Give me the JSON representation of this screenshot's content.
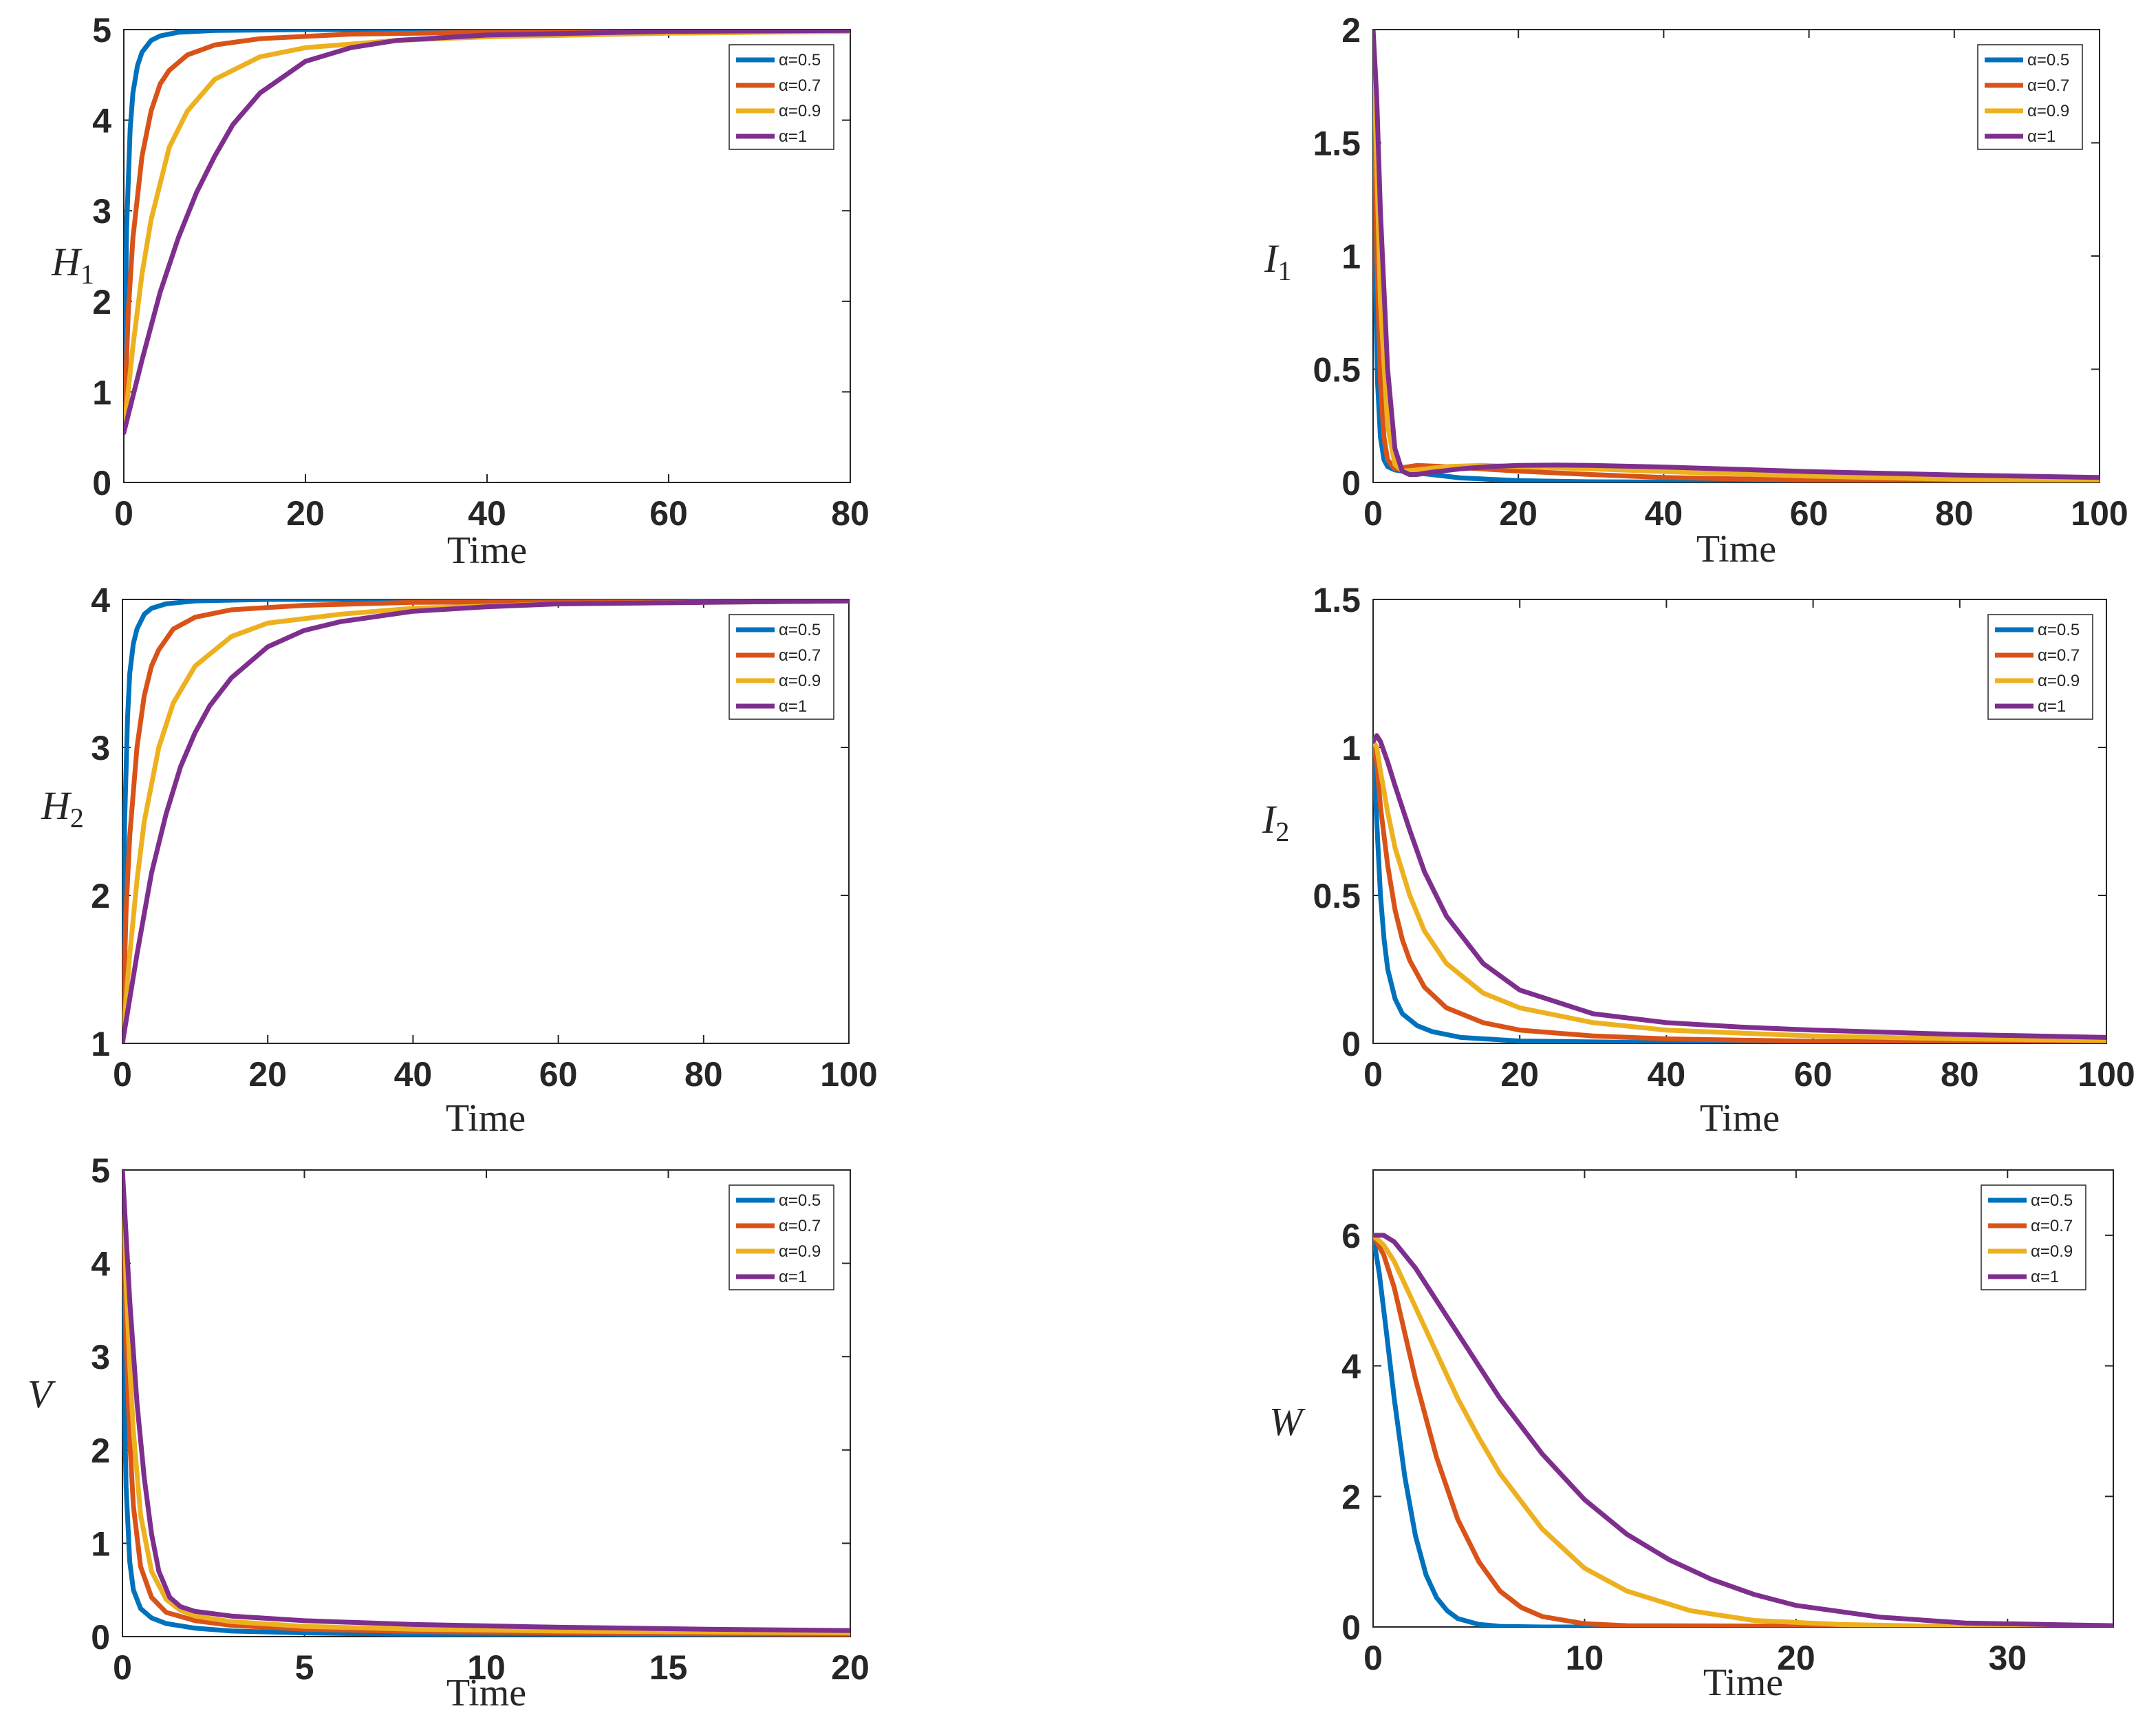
{
  "figure": {
    "series_colors": [
      "#0072BD",
      "#D95319",
      "#EDB120",
      "#7E2F8E"
    ],
    "legend_labels": [
      "α=0.5",
      "α=0.7",
      "α=0.9",
      "α=1"
    ]
  },
  "chart_data": [
    {
      "type": "line",
      "id": "H1",
      "ylabel": "H",
      "ylabel_sub": "1",
      "xlabel": "Time",
      "xlim": [
        0,
        80
      ],
      "ylim": [
        0,
        5
      ],
      "xticks": [
        0,
        20,
        40,
        60,
        80
      ],
      "yticks": [
        0,
        1,
        2,
        3,
        4,
        5
      ],
      "xtick_labels": [
        "0",
        "20",
        "40",
        "60",
        "80"
      ],
      "ytick_labels": [
        "0",
        "1",
        "2",
        "3",
        "4",
        "5"
      ],
      "legend_position": "top-right",
      "series": [
        {
          "name": "α=0.5",
          "x": [
            0,
            0.3,
            0.7,
            1,
            1.5,
            2,
            3,
            4,
            6,
            10,
            20,
            80
          ],
          "values": [
            0.55,
            2.8,
            3.9,
            4.3,
            4.6,
            4.75,
            4.88,
            4.93,
            4.97,
            4.99,
            5.0,
            5.0
          ]
        },
        {
          "name": "α=0.7",
          "x": [
            0,
            0.5,
            1,
            2,
            3,
            4,
            5,
            7,
            10,
            15,
            25,
            40,
            80
          ],
          "values": [
            0.55,
            1.9,
            2.7,
            3.6,
            4.1,
            4.4,
            4.55,
            4.72,
            4.83,
            4.9,
            4.95,
            4.97,
            4.99
          ]
        },
        {
          "name": "α=0.9",
          "x": [
            0,
            1,
            2,
            3,
            5,
            7,
            10,
            15,
            20,
            30,
            40,
            60,
            80
          ],
          "values": [
            0.55,
            1.5,
            2.3,
            2.9,
            3.7,
            4.1,
            4.45,
            4.7,
            4.8,
            4.88,
            4.92,
            4.96,
            4.98
          ]
        },
        {
          "name": "α=1",
          "x": [
            0,
            2,
            4,
            6,
            8,
            10,
            12,
            15,
            20,
            25,
            30,
            40,
            50,
            60,
            80
          ],
          "values": [
            0.55,
            1.35,
            2.1,
            2.7,
            3.2,
            3.6,
            3.95,
            4.3,
            4.65,
            4.8,
            4.88,
            4.94,
            4.96,
            4.98,
            4.99
          ]
        }
      ]
    },
    {
      "type": "line",
      "id": "I1",
      "ylabel": "I",
      "ylabel_sub": "1",
      "xlabel": "Time",
      "xlim": [
        0,
        100
      ],
      "ylim": [
        0,
        2
      ],
      "xticks": [
        0,
        20,
        40,
        60,
        80,
        100
      ],
      "yticks": [
        0,
        0.5,
        1,
        1.5,
        2
      ],
      "xtick_labels": [
        "0",
        "20",
        "40",
        "60",
        "80",
        "100"
      ],
      "ytick_labels": [
        "0",
        "0.5",
        "1",
        "1.5",
        "2"
      ],
      "legend_position": "top-right",
      "series": [
        {
          "name": "α=0.5",
          "x": [
            0,
            0.3,
            0.6,
            1,
            1.5,
            2,
            3,
            5,
            8,
            12,
            20,
            30,
            50,
            100
          ],
          "values": [
            2.0,
            0.9,
            0.45,
            0.2,
            0.1,
            0.07,
            0.055,
            0.045,
            0.035,
            0.02,
            0.008,
            0.003,
            0.001,
            0.0
          ]
        },
        {
          "name": "α=0.7",
          "x": [
            0,
            0.5,
            1,
            1.5,
            2,
            3,
            4,
            6,
            10,
            15,
            20,
            30,
            40,
            60,
            80,
            100
          ],
          "values": [
            2.0,
            1.0,
            0.45,
            0.2,
            0.1,
            0.06,
            0.065,
            0.075,
            0.07,
            0.06,
            0.05,
            0.035,
            0.022,
            0.01,
            0.004,
            0.001
          ]
        },
        {
          "name": "α=0.9",
          "x": [
            0,
            0.5,
            1,
            2,
            3,
            4,
            6,
            10,
            15,
            20,
            30,
            40,
            60,
            80,
            100
          ],
          "values": [
            2.0,
            1.4,
            0.8,
            0.25,
            0.08,
            0.05,
            0.055,
            0.07,
            0.075,
            0.07,
            0.06,
            0.048,
            0.028,
            0.014,
            0.006
          ]
        },
        {
          "name": "α=1",
          "x": [
            0,
            0.5,
            1,
            2,
            3,
            4,
            5,
            6,
            8,
            12,
            16,
            20,
            25,
            30,
            40,
            50,
            60,
            80,
            100
          ],
          "values": [
            2.0,
            1.7,
            1.2,
            0.5,
            0.15,
            0.05,
            0.035,
            0.035,
            0.045,
            0.06,
            0.07,
            0.075,
            0.077,
            0.075,
            0.068,
            0.058,
            0.048,
            0.033,
            0.022
          ]
        }
      ]
    },
    {
      "type": "line",
      "id": "H2",
      "ylabel": "H",
      "ylabel_sub": "2",
      "xlabel": "Time",
      "xlim": [
        0,
        100
      ],
      "ylim": [
        1,
        4
      ],
      "xticks": [
        0,
        20,
        40,
        60,
        80,
        100
      ],
      "yticks": [
        1,
        2,
        3,
        4
      ],
      "xtick_labels": [
        "0",
        "20",
        "40",
        "60",
        "80",
        "100"
      ],
      "ytick_labels": [
        "1",
        "2",
        "3",
        "4"
      ],
      "legend_position": "top-right",
      "series": [
        {
          "name": "α=0.5",
          "x": [
            0,
            0.3,
            0.7,
            1,
            1.5,
            2,
            3,
            4,
            6,
            10,
            20,
            100
          ],
          "values": [
            1.0,
            2.5,
            3.2,
            3.5,
            3.7,
            3.8,
            3.9,
            3.94,
            3.97,
            3.99,
            4.0,
            4.0
          ]
        },
        {
          "name": "α=0.7",
          "x": [
            0,
            0.5,
            1,
            2,
            3,
            4,
            5,
            7,
            10,
            15,
            25,
            40,
            100
          ],
          "values": [
            1.0,
            1.9,
            2.4,
            3.0,
            3.35,
            3.55,
            3.66,
            3.8,
            3.88,
            3.93,
            3.96,
            3.98,
            3.99
          ]
        },
        {
          "name": "α=0.9",
          "x": [
            0,
            1,
            2,
            3,
            5,
            7,
            10,
            15,
            20,
            30,
            40,
            60,
            100
          ],
          "values": [
            1.0,
            1.6,
            2.1,
            2.5,
            3.0,
            3.3,
            3.55,
            3.75,
            3.84,
            3.9,
            3.94,
            3.97,
            3.99
          ]
        },
        {
          "name": "α=1",
          "x": [
            0,
            2,
            4,
            6,
            8,
            10,
            12,
            15,
            20,
            25,
            30,
            40,
            50,
            60,
            80,
            100
          ],
          "values": [
            1.0,
            1.6,
            2.15,
            2.55,
            2.87,
            3.1,
            3.28,
            3.47,
            3.68,
            3.79,
            3.85,
            3.92,
            3.95,
            3.97,
            3.98,
            3.99
          ]
        }
      ]
    },
    {
      "type": "line",
      "id": "I2",
      "ylabel": "I",
      "ylabel_sub": "2",
      "xlabel": "Time",
      "xlim": [
        0,
        100
      ],
      "ylim": [
        0,
        1.5
      ],
      "xticks": [
        0,
        20,
        40,
        60,
        80,
        100
      ],
      "yticks": [
        0,
        0.5,
        1,
        1.5
      ],
      "xtick_labels": [
        "0",
        "20",
        "40",
        "60",
        "80",
        "100"
      ],
      "ytick_labels": [
        "0",
        "0.5",
        "1",
        "1.5"
      ],
      "legend_position": "top-right",
      "series": [
        {
          "name": "α=0.5",
          "x": [
            0,
            0.5,
            1,
            1.5,
            2,
            3,
            4,
            6,
            8,
            12,
            20,
            40,
            100
          ],
          "values": [
            1.0,
            0.75,
            0.5,
            0.35,
            0.25,
            0.15,
            0.1,
            0.06,
            0.04,
            0.02,
            0.008,
            0.002,
            0.0
          ]
        },
        {
          "name": "α=0.7",
          "x": [
            0,
            0.5,
            1,
            2,
            3,
            4,
            5,
            7,
            10,
            15,
            20,
            30,
            40,
            60,
            100
          ],
          "values": [
            1.02,
            0.95,
            0.8,
            0.6,
            0.45,
            0.35,
            0.28,
            0.19,
            0.12,
            0.07,
            0.045,
            0.025,
            0.015,
            0.007,
            0.002
          ]
        },
        {
          "name": "α=0.9",
          "x": [
            0,
            0.5,
            1,
            2,
            3,
            5,
            7,
            10,
            15,
            20,
            30,
            40,
            60,
            80,
            100
          ],
          "values": [
            1.02,
            1.0,
            0.92,
            0.78,
            0.66,
            0.5,
            0.38,
            0.27,
            0.17,
            0.12,
            0.07,
            0.045,
            0.025,
            0.015,
            0.01
          ]
        },
        {
          "name": "α=1",
          "x": [
            0,
            0.5,
            1,
            2,
            3,
            5,
            7,
            10,
            15,
            20,
            30,
            40,
            50,
            60,
            80,
            100
          ],
          "values": [
            1.02,
            1.04,
            1.02,
            0.95,
            0.87,
            0.72,
            0.58,
            0.43,
            0.27,
            0.18,
            0.1,
            0.07,
            0.055,
            0.045,
            0.03,
            0.02
          ]
        }
      ]
    },
    {
      "type": "line",
      "id": "V",
      "ylabel": "V",
      "ylabel_sub": "",
      "xlabel": "Time",
      "xlim": [
        0,
        20
      ],
      "ylim": [
        0,
        5
      ],
      "xticks": [
        0,
        5,
        10,
        15,
        20
      ],
      "yticks": [
        0,
        1,
        2,
        3,
        4,
        5
      ],
      "xtick_labels": [
        "0",
        "5",
        "10",
        "15",
        "20"
      ],
      "ytick_labels": [
        "0",
        "1",
        "2",
        "3",
        "4",
        "5"
      ],
      "legend_position": "top-right",
      "series": [
        {
          "name": "α=0.5",
          "x": [
            0,
            0.05,
            0.1,
            0.2,
            0.3,
            0.5,
            0.8,
            1.2,
            2,
            3,
            5,
            8,
            12,
            20
          ],
          "values": [
            5.0,
            2.6,
            1.6,
            0.8,
            0.5,
            0.3,
            0.2,
            0.14,
            0.09,
            0.06,
            0.04,
            0.025,
            0.015,
            0.01
          ]
        },
        {
          "name": "α=0.7",
          "x": [
            0,
            0.1,
            0.2,
            0.3,
            0.5,
            0.8,
            1.2,
            2,
            3,
            5,
            8,
            12,
            16,
            20
          ],
          "values": [
            5.0,
            3.2,
            2.1,
            1.4,
            0.75,
            0.42,
            0.26,
            0.17,
            0.12,
            0.08,
            0.055,
            0.04,
            0.03,
            0.025
          ]
        },
        {
          "name": "α=0.9",
          "x": [
            0,
            0.1,
            0.2,
            0.3,
            0.5,
            0.8,
            1.2,
            1.6,
            2,
            3,
            5,
            8,
            12,
            16,
            20
          ],
          "values": [
            5.0,
            3.8,
            2.9,
            2.2,
            1.3,
            0.7,
            0.4,
            0.28,
            0.22,
            0.16,
            0.11,
            0.08,
            0.06,
            0.05,
            0.04
          ]
        },
        {
          "name": "α=1",
          "x": [
            0,
            0.1,
            0.2,
            0.4,
            0.6,
            0.8,
            1,
            1.3,
            1.6,
            2,
            3,
            5,
            8,
            12,
            16,
            20
          ],
          "values": [
            5.0,
            4.3,
            3.6,
            2.5,
            1.7,
            1.1,
            0.7,
            0.42,
            0.32,
            0.27,
            0.22,
            0.17,
            0.13,
            0.1,
            0.08,
            0.065
          ]
        }
      ]
    },
    {
      "type": "line",
      "id": "W",
      "ylabel": "W",
      "ylabel_sub": "",
      "xlabel": "Time",
      "xlim": [
        0,
        35
      ],
      "ylim": [
        0,
        7
      ],
      "xticks": [
        0,
        10,
        20,
        30
      ],
      "yticks": [
        0,
        2,
        4,
        6
      ],
      "xtick_labels": [
        "0",
        "10",
        "20",
        "30"
      ],
      "ytick_labels": [
        "0",
        "2",
        "4",
        "6"
      ],
      "legend_position": "top-right",
      "series": [
        {
          "name": "α=0.5",
          "x": [
            0,
            0.3,
            0.6,
            1,
            1.5,
            2,
            2.5,
            3,
            3.5,
            4,
            5,
            6,
            8,
            35
          ],
          "values": [
            6.0,
            5.4,
            4.6,
            3.5,
            2.3,
            1.4,
            0.8,
            0.45,
            0.25,
            0.13,
            0.04,
            0.01,
            0.0,
            0.0
          ]
        },
        {
          "name": "α=0.7",
          "x": [
            0,
            0.5,
            1,
            1.5,
            2,
            3,
            4,
            5,
            6,
            7,
            8,
            10,
            12,
            35
          ],
          "values": [
            6.0,
            5.7,
            5.2,
            4.5,
            3.8,
            2.6,
            1.65,
            1.0,
            0.55,
            0.3,
            0.16,
            0.05,
            0.02,
            0.0
          ]
        },
        {
          "name": "α=0.9",
          "x": [
            0,
            0.5,
            1,
            2,
            3,
            4,
            5,
            6,
            8,
            10,
            12,
            15,
            18,
            22,
            26,
            35
          ],
          "values": [
            6.0,
            5.85,
            5.6,
            4.9,
            4.2,
            3.5,
            2.9,
            2.35,
            1.5,
            0.9,
            0.55,
            0.25,
            0.1,
            0.04,
            0.015,
            0.0
          ]
        },
        {
          "name": "α=1",
          "x": [
            0,
            0.5,
            1,
            2,
            3,
            4,
            5,
            6,
            8,
            10,
            12,
            14,
            16,
            18,
            20,
            24,
            28,
            35
          ],
          "values": [
            6.0,
            6.0,
            5.9,
            5.5,
            5.0,
            4.5,
            4.0,
            3.5,
            2.65,
            1.95,
            1.42,
            1.03,
            0.73,
            0.5,
            0.33,
            0.15,
            0.06,
            0.02
          ]
        }
      ]
    }
  ]
}
